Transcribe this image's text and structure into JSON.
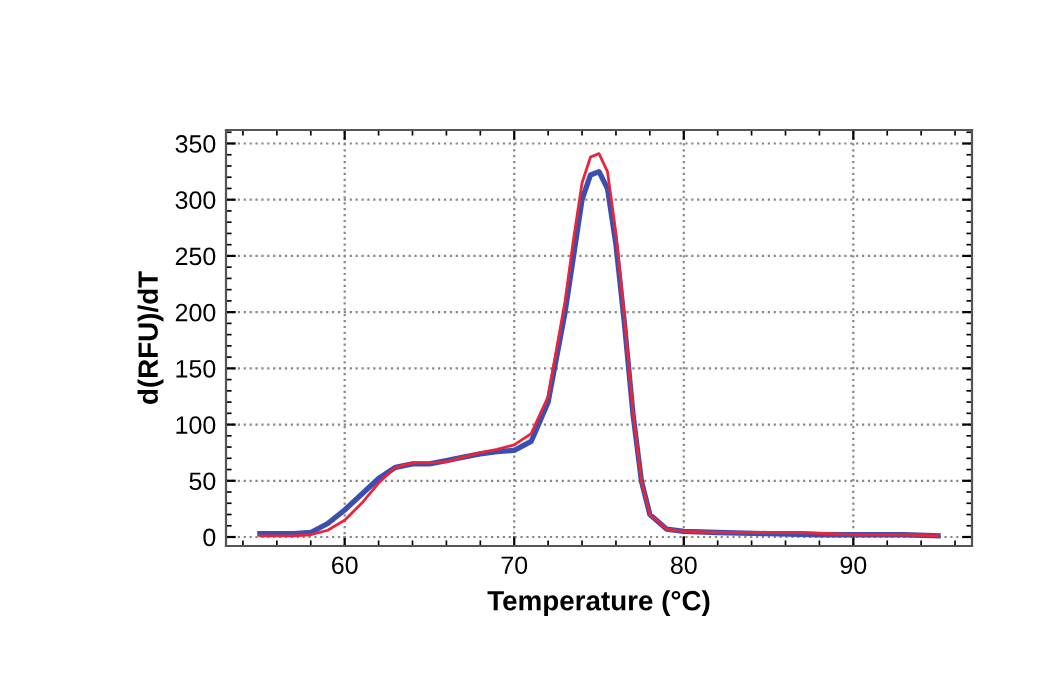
{
  "chart_data": {
    "type": "line",
    "xlabel": "Temperature (°C)",
    "ylabel": "d(RFU)/dT",
    "xlim": [
      53,
      97
    ],
    "xticks": [
      60,
      70,
      80,
      90
    ],
    "ylim": [
      -8,
      362
    ],
    "yticks": [
      0,
      50,
      100,
      150,
      200,
      250,
      300,
      350
    ],
    "grid": true,
    "line_style": "solid",
    "series": [
      {
        "color": "#3a4fb0",
        "x": [
          55,
          57,
          58,
          59,
          60,
          61,
          62,
          63,
          64,
          65,
          66,
          67,
          68,
          69,
          70,
          71,
          72,
          73,
          73.5,
          74,
          74.5,
          75,
          75.5,
          76,
          76.5,
          77,
          77.5,
          78,
          79,
          80,
          82,
          85,
          88,
          90,
          93,
          95
        ],
        "values": [
          3,
          3,
          4,
          12,
          24,
          38,
          52,
          62,
          65,
          65,
          68,
          71,
          74,
          76,
          77,
          85,
          120,
          200,
          250,
          300,
          322,
          325,
          310,
          260,
          190,
          110,
          50,
          20,
          7,
          5,
          4,
          3,
          2,
          2,
          2,
          1
        ]
      },
      {
        "color": "#e8253a",
        "x": [
          55,
          57,
          58,
          59,
          60,
          61,
          62,
          63,
          64,
          65,
          66,
          67,
          68,
          69,
          70,
          71,
          72,
          73,
          73.5,
          74,
          74.5,
          75,
          75.5,
          76,
          76.5,
          77,
          77.5,
          78,
          79,
          80,
          82,
          85,
          87,
          90,
          93,
          95
        ],
        "values": [
          1,
          1,
          2,
          6,
          15,
          30,
          48,
          62,
          66,
          66,
          67,
          71,
          75,
          78,
          82,
          92,
          125,
          210,
          265,
          315,
          338,
          341,
          325,
          270,
          195,
          112,
          50,
          20,
          7,
          5,
          4,
          4,
          4,
          2,
          2,
          1
        ]
      }
    ]
  }
}
